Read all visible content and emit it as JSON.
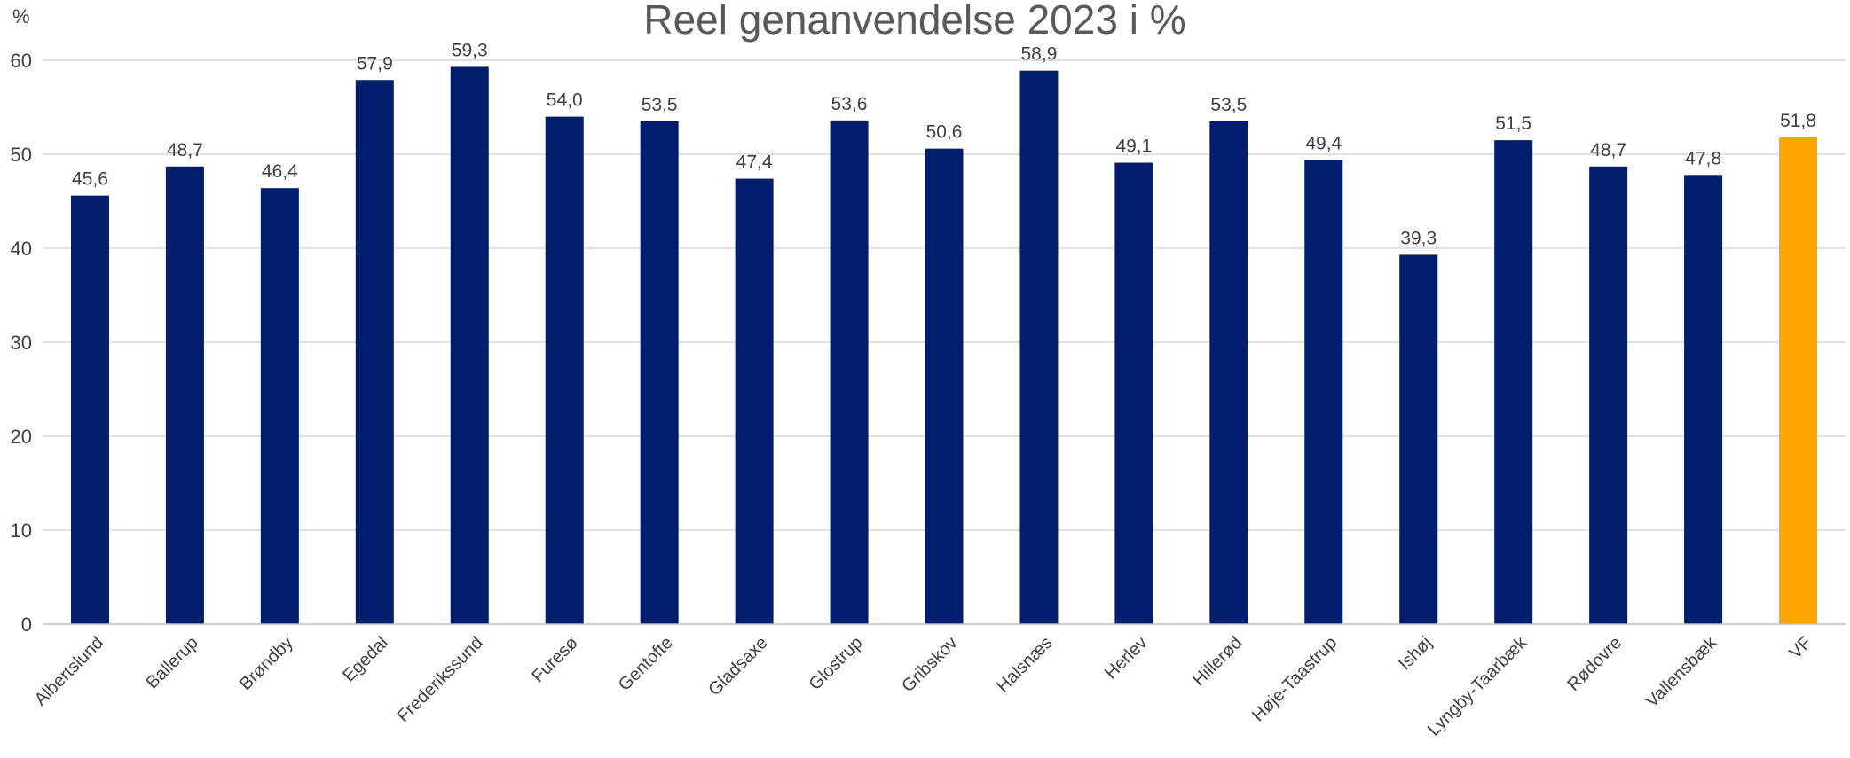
{
  "chart_data": {
    "type": "bar",
    "title": "Reel genanvendelse 2023 i %",
    "ylabel": "%",
    "xlabel": "",
    "ylim": [
      0,
      60
    ],
    "yticks": [
      0,
      10,
      20,
      30,
      40,
      50,
      60
    ],
    "grid": true,
    "legend": "none",
    "categories": [
      "Albertslund",
      "Ballerup",
      "Brøndby",
      "Egedal",
      "Frederikssund",
      "Furesø",
      "Gentofte",
      "Gladsaxe",
      "Glostrup",
      "Gribskov",
      "Halsnæs",
      "Herlev",
      "Hillerød",
      "Høje-Taastrup",
      "Ishøj",
      "Lyngby-Taarbæk",
      "Rødovre",
      "Vallensbæk",
      "VF"
    ],
    "values": [
      45.6,
      48.7,
      46.4,
      57.9,
      59.3,
      54.0,
      53.5,
      47.4,
      53.6,
      50.6,
      58.9,
      49.1,
      53.5,
      49.4,
      39.3,
      51.5,
      48.7,
      47.8,
      51.8
    ],
    "value_labels": [
      "45,6",
      "48,7",
      "46,4",
      "57,9",
      "59,3",
      "54,0",
      "53,5",
      "47,4",
      "53,6",
      "50,6",
      "58,9",
      "49,1",
      "53,5",
      "49,4",
      "39,3",
      "51,5",
      "48,7",
      "47,8",
      "51,8"
    ],
    "colors": {
      "bar": "#001e6b",
      "highlight": "#ffa500",
      "highlight_category": "VF"
    }
  }
}
